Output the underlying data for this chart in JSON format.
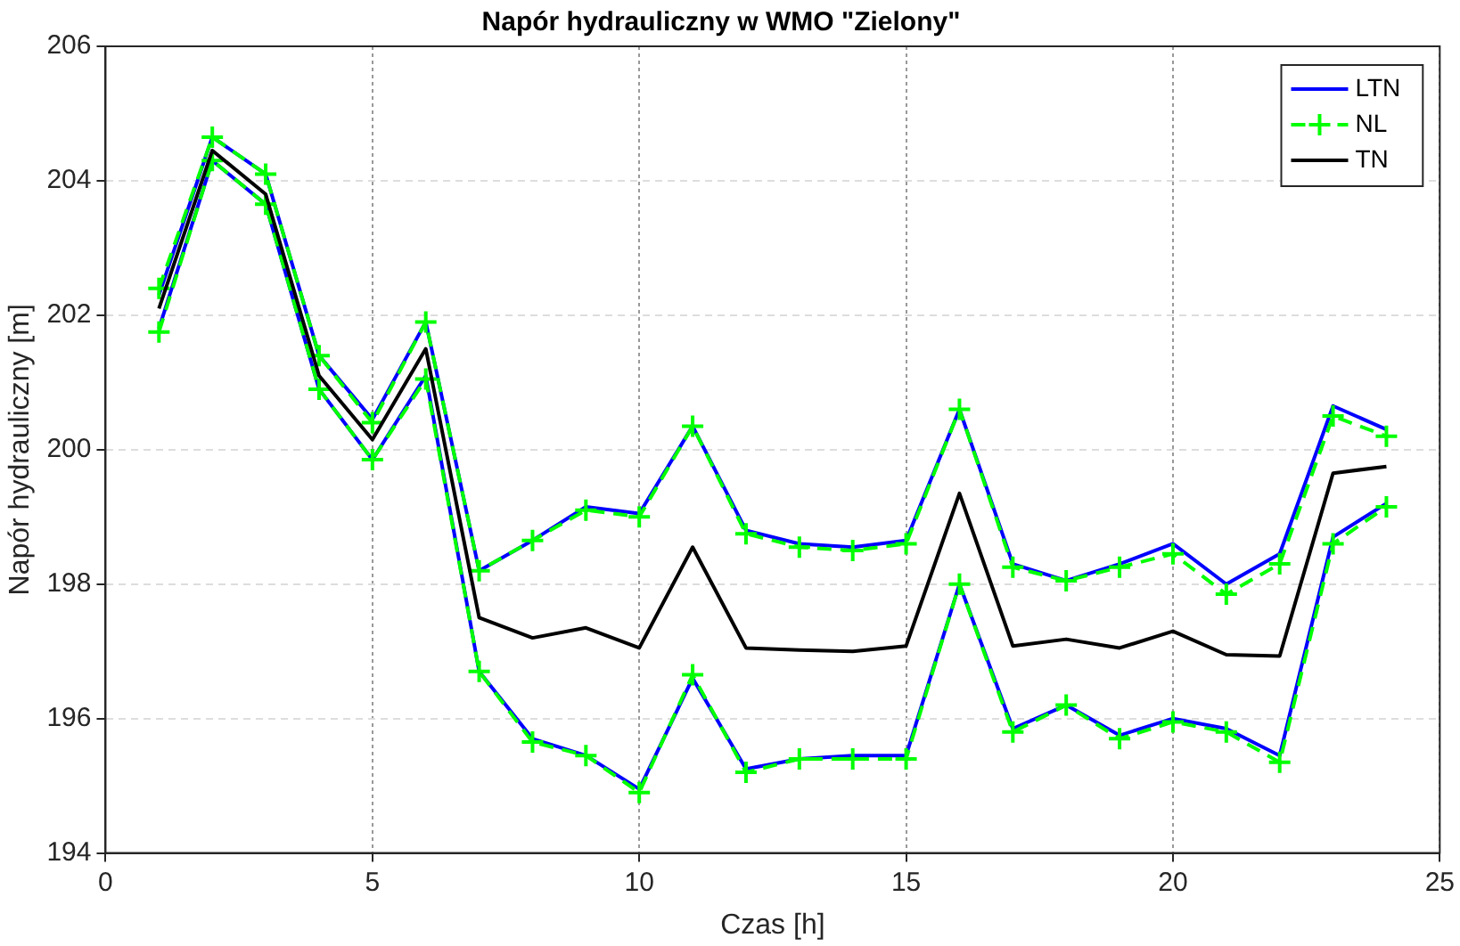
{
  "chart_data": {
    "type": "line",
    "title": "Napór hydrauliczny w WMO \"Zielony\"",
    "xlabel": "Czas [h]",
    "ylabel": "Napór hydrauliczny [m]",
    "x": [
      1,
      2,
      3,
      4,
      5,
      6,
      7,
      8,
      9,
      10,
      11,
      12,
      13,
      14,
      15,
      16,
      17,
      18,
      19,
      20,
      21,
      22,
      23,
      24
    ],
    "xlim": [
      0,
      25
    ],
    "xticks": [
      0,
      5,
      10,
      15,
      20,
      25
    ],
    "ylim": [
      194,
      206
    ],
    "yticks": [
      194,
      196,
      198,
      200,
      202,
      204,
      206
    ],
    "grid": true,
    "legend": "top right",
    "series": [
      {
        "name": "LTN",
        "color": "#0000ff",
        "line_style": "solid",
        "marker": "none",
        "values": [
          202.3,
          204.65,
          204.1,
          201.4,
          200.45,
          201.9,
          198.2,
          198.65,
          199.15,
          199.05,
          200.35,
          198.8,
          198.6,
          198.55,
          198.65,
          200.6,
          198.3,
          198.05,
          198.3,
          198.6,
          198.0,
          198.45,
          200.65,
          200.3
        ]
      },
      {
        "color": "#0000ff",
        "line_style": "solid",
        "marker": "none",
        "values": [
          201.8,
          204.3,
          203.65,
          200.9,
          199.85,
          201.1,
          196.7,
          195.7,
          195.45,
          194.95,
          196.6,
          195.25,
          195.4,
          195.45,
          195.45,
          198.0,
          195.85,
          196.2,
          195.75,
          196.0,
          195.85,
          195.45,
          198.7,
          199.2
        ]
      },
      {
        "name": "NL",
        "color": "#00ff00",
        "line_style": "dashed",
        "marker": "cross",
        "values": [
          202.4,
          204.65,
          204.1,
          201.4,
          200.4,
          201.9,
          198.2,
          198.65,
          199.1,
          199.0,
          200.35,
          198.75,
          198.55,
          198.5,
          198.6,
          200.6,
          198.25,
          198.05,
          198.25,
          198.45,
          197.85,
          198.3,
          200.5,
          200.2
        ]
      },
      {
        "color": "#00ff00",
        "line_style": "dashed",
        "marker": "cross",
        "values": [
          201.75,
          204.3,
          203.65,
          200.9,
          199.85,
          201.05,
          196.7,
          195.65,
          195.45,
          194.9,
          196.65,
          195.2,
          195.4,
          195.4,
          195.4,
          198.0,
          195.8,
          196.2,
          195.7,
          195.95,
          195.8,
          195.35,
          198.6,
          199.15
        ]
      },
      {
        "name": "TN",
        "color": "#000000",
        "line_style": "solid",
        "marker": "none",
        "values": [
          202.1,
          204.45,
          203.8,
          201.1,
          200.15,
          201.5,
          197.5,
          197.2,
          197.35,
          197.05,
          198.55,
          197.05,
          197.02,
          197.0,
          197.08,
          199.35,
          197.08,
          197.18,
          197.05,
          197.3,
          196.95,
          196.93,
          199.65,
          199.75
        ]
      }
    ]
  }
}
